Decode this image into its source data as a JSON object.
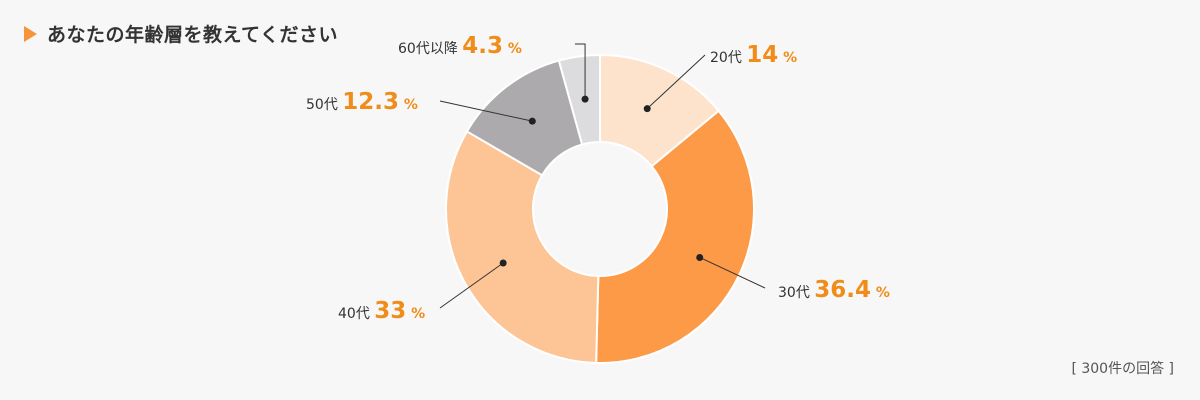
{
  "header": {
    "title": "あなたの年齢層を教えてください",
    "arrow_icon": "triangle-right-icon",
    "accent_color": "#f5943b"
  },
  "footnote": "[ 300件の回答 ]",
  "chart_data": {
    "type": "pie",
    "donut": true,
    "title": "あなたの年齢層を教えてください",
    "unit": "%",
    "value_color": "#f08c19",
    "categories": [
      "20代",
      "30代",
      "40代",
      "50代",
      "60代以降"
    ],
    "values": [
      14,
      36.4,
      33,
      12.3,
      4.3
    ],
    "value_labels": [
      "14",
      "36.4",
      "33",
      "12.3",
      "4.3"
    ],
    "colors": [
      "#fde3cc",
      "#fd9a48",
      "#fdc495",
      "#adaaad",
      "#dcdcdf"
    ],
    "sample_note": "300件の回答"
  }
}
